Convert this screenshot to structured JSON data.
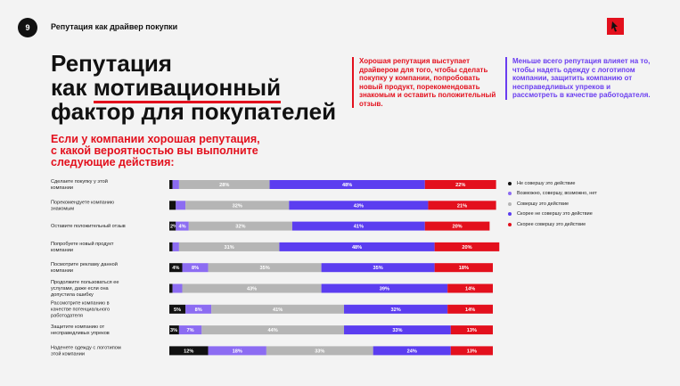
{
  "header": {
    "page_number": "9",
    "title": "Репутация как драйвер покупки"
  },
  "main_title": {
    "line1": "Репутация",
    "line2_pre": "как ",
    "line2_ul": "мотивационный",
    "line3": "фактор для покупателей"
  },
  "callouts": {
    "red": "Хорошая репутация выступает драйвером для того, чтобы сделать покупку у компании, попробовать новый продукт, порекомендовать знакомым и оставить положительный отзыв.",
    "purple": "Меньше всего репутация влияет на то, чтобы надеть одежду с логотипом компании, защитить компанию от несправедливых упреков и рассмотреть в качестве работодателя."
  },
  "question": "Если у компании хорошая репутация, с какой вероятностью вы выполните следующие действия:",
  "colors": {
    "black": "#111111",
    "violet": "#8c6cf2",
    "gray": "#b5b5b5",
    "purple": "#5b3df0",
    "red": "#e3101d"
  },
  "chart_data": {
    "type": "bar",
    "stacked": true,
    "orientation": "horizontal",
    "categories": [
      "Сделаете покупку у этой компании",
      "Порекомендуете компанию знакомым",
      "Оставите положительный отзыв",
      "Попробуете новый продукт компании",
      "Посмотрите рекламу данной компании",
      "Продолжите пользоваться ее услугами, даже если она допустила ошибку",
      "Рассмотрите компанию в качестве потенциального работодателя",
      "Защитите компанию от несправедливых упреков",
      "Наденете одежду с логотипом этой компании"
    ],
    "series": [
      {
        "name": "Не совершу это действие",
        "color": "#111111",
        "values": [
          1,
          2,
          2,
          1,
          4,
          1,
          5,
          3,
          12
        ]
      },
      {
        "name": "Возможно, совершу, возможно, нет",
        "color": "#8c6cf2",
        "values": [
          2,
          3,
          4,
          2,
          8,
          3,
          8,
          7,
          18
        ]
      },
      {
        "name": "Совершу это действие",
        "color": "#b5b5b5",
        "values": [
          28,
          32,
          32,
          31,
          35,
          43,
          41,
          44,
          33
        ]
      },
      {
        "name": "Скорее не совершу это действие",
        "color": "#5b3df0",
        "values": [
          48,
          43,
          41,
          48,
          35,
          39,
          32,
          33,
          24
        ]
      },
      {
        "name": "Скорее совершу это действие",
        "color": "#e3101d",
        "values": [
          22,
          21,
          20,
          20,
          18,
          14,
          14,
          13,
          13
        ]
      }
    ],
    "data_labels": [
      [
        "",
        "",
        "28%",
        "48%",
        "22%"
      ],
      [
        "",
        "",
        "32%",
        "43%",
        "21%"
      ],
      [
        "2%",
        "4%",
        "32%",
        "41%",
        "20%"
      ],
      [
        "",
        "",
        "31%",
        "48%",
        "20%"
      ],
      [
        "4%",
        "8%",
        "35%",
        "35%",
        "18%"
      ],
      [
        "",
        "",
        "43%",
        "39%",
        "14%"
      ],
      [
        "5%",
        "8%",
        "41%",
        "32%",
        "14%"
      ],
      [
        "3%",
        "7%",
        "44%",
        "33%",
        "13%"
      ],
      [
        "12%",
        "18%",
        "33%",
        "24%",
        "13%"
      ]
    ]
  }
}
